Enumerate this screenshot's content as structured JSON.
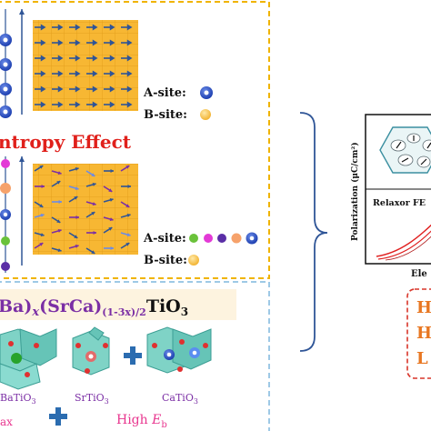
{
  "top_panel": {
    "label_a_site": "A-site:",
    "label_b_site": "B-site:",
    "title": "ntropy Effect",
    "label_a_site_2": "A-site:",
    "label_b_site_2": "B-site:"
  },
  "formula": {
    "part1": "Ba)",
    "x1": "x",
    "part2": "(SrCa)",
    "sub": "(1-3x)/2",
    "part3": "TiO",
    "three": "3"
  },
  "crystals": {
    "batio3": "BaTiO",
    "srtio3": "SrTiO",
    "catio3": "CaTiO",
    "subscript": "3",
    "high_eb_prefix": "High ",
    "high_eb_e": "E",
    "high_eb_sub": "b",
    "max_fragment": "ax"
  },
  "plot": {
    "ylabel": "Polarization (μC/cm²)",
    "legend": "Relaxor FE",
    "xlabel_fragment": "Ele"
  },
  "right_box": {
    "line1": "H",
    "line2": "H",
    "line3": "L"
  },
  "colors": {
    "dashed_border": "#f0b400",
    "grid_fill": "#f7b733",
    "arrow_blue": "#2f5597",
    "title_red": "#e0201b",
    "dashed_blue": "#9ec9e6",
    "formula_bg": "#fdf3df",
    "plus_blue": "#2b6cb0",
    "high_eb_pink": "#e8368f",
    "box_red": "#d9352a",
    "box_text": "#e87722",
    "plot_red": "#e02020"
  }
}
